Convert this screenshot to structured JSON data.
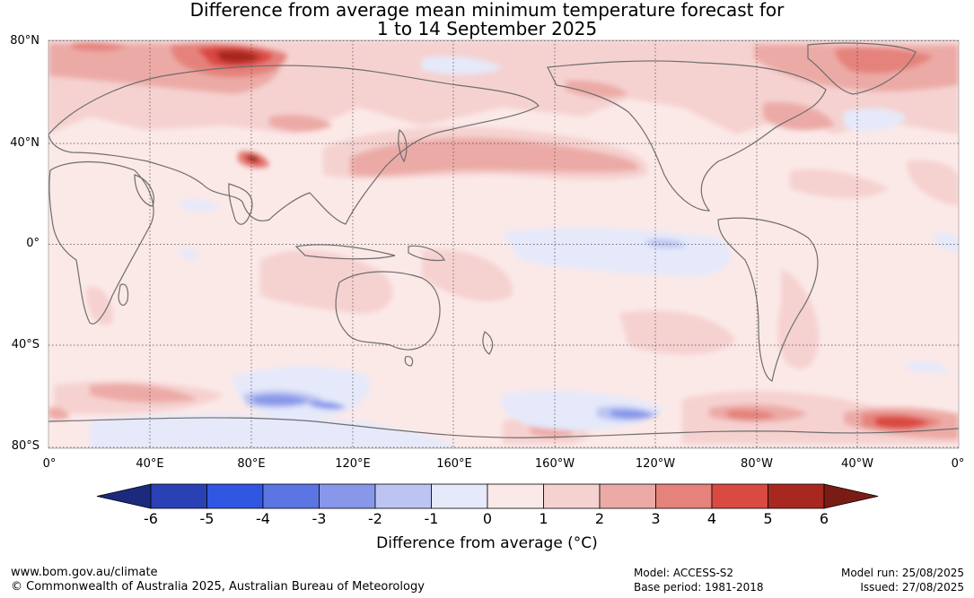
{
  "title_line1": "Difference from average mean minimum temperature forecast for",
  "title_line2": "1 to 14 September 2025",
  "map": {
    "latitude_labels": [
      "80°N",
      "40°N",
      "0°",
      "40°S",
      "80°S"
    ],
    "longitude_labels": [
      "0°",
      "40°E",
      "80°E",
      "120°E",
      "160°E",
      "160°W",
      "120°W",
      "80°W",
      "40°W",
      "0°"
    ],
    "projection": "equirectangular, 0° to 360° longitude, 80°S to 80°N"
  },
  "colorbar": {
    "ticks": [
      "-6",
      "-5",
      "-4",
      "-3",
      "-2",
      "-1",
      "0",
      "1",
      "2",
      "3",
      "4",
      "5",
      "6"
    ],
    "colors": [
      "#1b2a7c",
      "#2a41b5",
      "#3056e2",
      "#5b75e3",
      "#8797ea",
      "#bcc5f2",
      "#e5e9fa",
      "#fbe9e8",
      "#f5d2d0",
      "#ecaaa6",
      "#e5827b",
      "#d94a42",
      "#a8281f",
      "#7a1c16"
    ],
    "label": "Difference from average (°C)"
  },
  "footer": {
    "website": "www.bom.gov.au/climate",
    "copyright": "© Commonwealth of Australia 2025, Australian Bureau of Meteorology",
    "model": "Model: ACCESS-S2",
    "base_period": "Base period: 1981-2018",
    "model_run": "Model run: 25/08/2025",
    "issued": "Issued: 27/08/2025"
  }
}
